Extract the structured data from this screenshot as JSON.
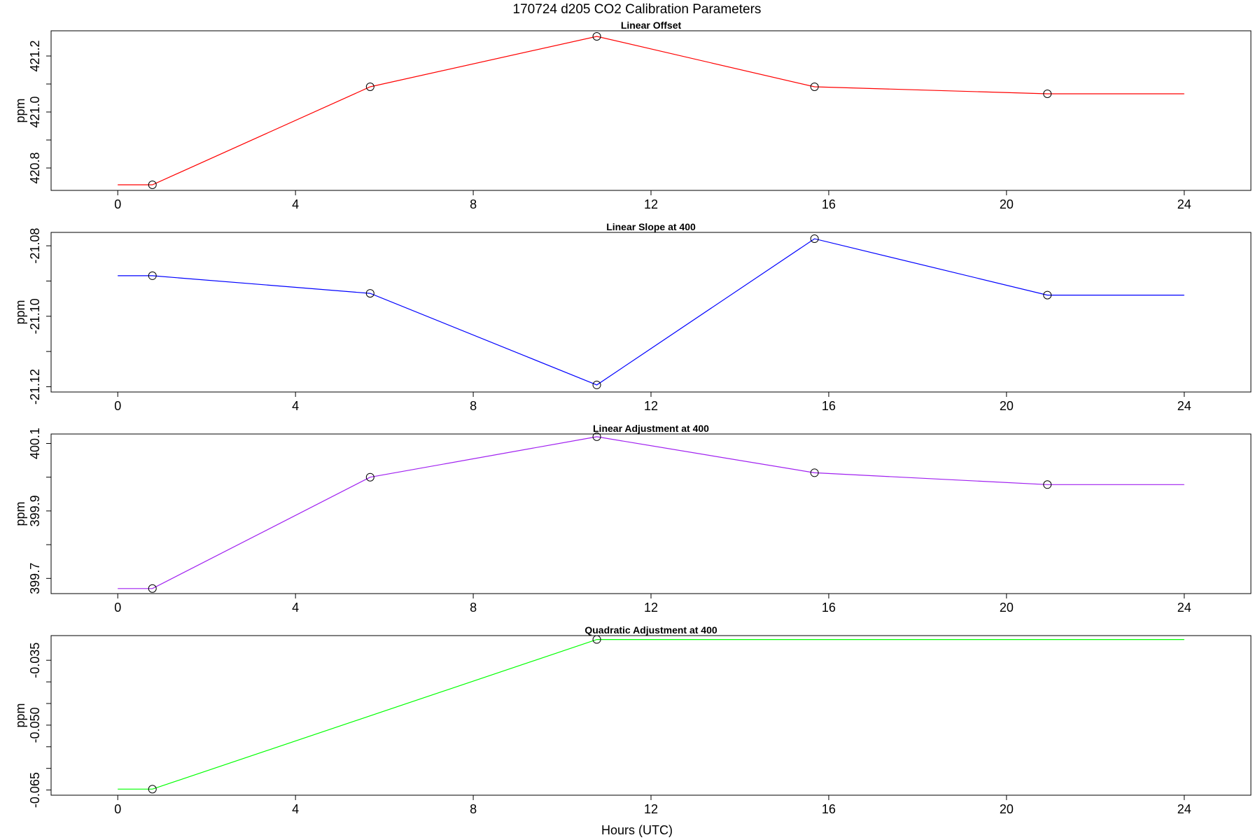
{
  "figure": {
    "title": "170724   d205   CO2 Calibration Parameters",
    "xlabel": "Hours (UTC)"
  },
  "chart_data": [
    {
      "type": "line",
      "title": "Linear Offset",
      "xlabel": "",
      "ylabel": "ppm",
      "color": "#ff0000",
      "xlim": [
        0,
        24
      ],
      "xticks": [
        0,
        4,
        8,
        12,
        16,
        20,
        24
      ],
      "ylim": [
        420.72,
        421.29
      ],
      "yticks": [
        420.8,
        420.9,
        421.0,
        421.1,
        421.2
      ],
      "ytick_labels": [
        "420.8",
        "",
        "421.0",
        "",
        "421.2"
      ],
      "points": [
        {
          "x": 0.78,
          "y": 420.74
        },
        {
          "x": 5.68,
          "y": 421.09
        },
        {
          "x": 10.78,
          "y": 421.27
        },
        {
          "x": 15.68,
          "y": 421.09
        },
        {
          "x": 20.92,
          "y": 421.065
        }
      ],
      "line": [
        {
          "x": 0.0,
          "y": 420.74
        },
        {
          "x": 0.78,
          "y": 420.74
        },
        {
          "x": 5.68,
          "y": 421.09
        },
        {
          "x": 10.78,
          "y": 421.27
        },
        {
          "x": 15.68,
          "y": 421.09
        },
        {
          "x": 20.92,
          "y": 421.065
        },
        {
          "x": 24.0,
          "y": 421.065
        }
      ]
    },
    {
      "type": "line",
      "title": "Linear Slope at 400",
      "xlabel": "",
      "ylabel": "ppm",
      "color": "#0000ff",
      "xlim": [
        0,
        24
      ],
      "xticks": [
        0,
        4,
        8,
        12,
        16,
        20,
        24
      ],
      "ylim": [
        -21.1215,
        -21.0762
      ],
      "yticks": [
        -21.12,
        -21.11,
        -21.1,
        -21.09,
        -21.08
      ],
      "ytick_labels": [
        "-21.12",
        "",
        "-21.10",
        "",
        "-21.08"
      ],
      "points": [
        {
          "x": 0.78,
          "y": -21.0885
        },
        {
          "x": 5.68,
          "y": -21.0935
        },
        {
          "x": 10.78,
          "y": -21.1195
        },
        {
          "x": 15.68,
          "y": -21.078
        },
        {
          "x": 20.92,
          "y": -21.094
        }
      ],
      "line": [
        {
          "x": 0.0,
          "y": -21.0885
        },
        {
          "x": 0.78,
          "y": -21.0885
        },
        {
          "x": 5.68,
          "y": -21.0935
        },
        {
          "x": 10.78,
          "y": -21.1195
        },
        {
          "x": 15.68,
          "y": -21.078
        },
        {
          "x": 20.92,
          "y": -21.094
        },
        {
          "x": 24.0,
          "y": -21.094
        }
      ]
    },
    {
      "type": "line",
      "title": "Linear Adjustment at 400",
      "xlabel": "",
      "ylabel": "ppm",
      "color": "#a020f0",
      "xlim": [
        0,
        24
      ],
      "xticks": [
        0,
        4,
        8,
        12,
        16,
        20,
        24
      ],
      "ylim": [
        399.655,
        400.128
      ],
      "yticks": [
        399.7,
        399.8,
        399.9,
        400.0,
        400.1
      ],
      "ytick_labels": [
        "399.7",
        "",
        "399.9",
        "",
        "400.1"
      ],
      "points": [
        {
          "x": 0.78,
          "y": 399.67
        },
        {
          "x": 5.68,
          "y": 400.0
        },
        {
          "x": 10.78,
          "y": 400.12
        },
        {
          "x": 15.68,
          "y": 400.013
        },
        {
          "x": 20.92,
          "y": 399.978
        }
      ],
      "line": [
        {
          "x": 0.0,
          "y": 399.67
        },
        {
          "x": 0.78,
          "y": 399.67
        },
        {
          "x": 5.68,
          "y": 400.0
        },
        {
          "x": 10.78,
          "y": 400.12
        },
        {
          "x": 15.68,
          "y": 400.013
        },
        {
          "x": 20.92,
          "y": 399.978
        },
        {
          "x": 24.0,
          "y": 399.978
        }
      ]
    },
    {
      "type": "line",
      "title": "Quadratic Adjustment at 400",
      "xlabel": "",
      "ylabel": "ppm",
      "color": "#00ff00",
      "xlim": [
        0,
        24
      ],
      "xticks": [
        0,
        4,
        8,
        12,
        16,
        20,
        24
      ],
      "ylim": [
        -0.0662,
        -0.0293
      ],
      "yticks": [
        -0.065,
        -0.06,
        -0.055,
        -0.05,
        -0.045,
        -0.04,
        -0.035
      ],
      "ytick_labels": [
        "-0.065",
        "",
        "",
        "-0.050",
        "",
        "",
        "-0.035"
      ],
      "points": [
        {
          "x": 0.78,
          "y": -0.0648
        },
        {
          "x": 10.78,
          "y": -0.0302
        }
      ],
      "line": [
        {
          "x": 0.0,
          "y": -0.0648
        },
        {
          "x": 0.78,
          "y": -0.0648
        },
        {
          "x": 10.78,
          "y": -0.0302
        },
        {
          "x": 24.0,
          "y": -0.0302
        }
      ]
    }
  ]
}
